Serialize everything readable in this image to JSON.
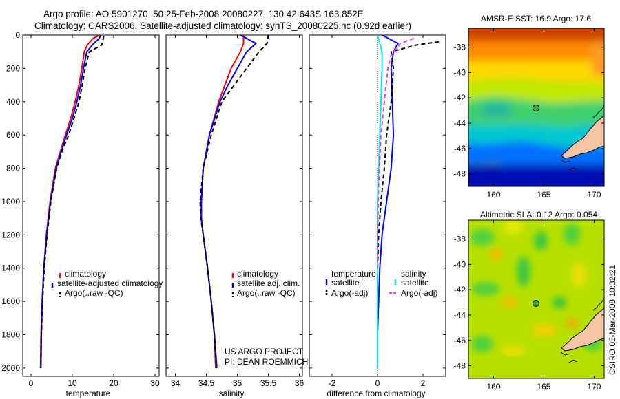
{
  "header": {
    "line1": "Argo profile: AO 5901270_50 25-Feb-2008 20080227_130 42.643S 163.852E",
    "line2": "Climatology: CARS2006. Satellite-adjusted climatology: synTS_20080225.nc (0.92d earlier)"
  },
  "footer": {
    "project": "US ARGO PROJECT",
    "pi": "PI: DEAN ROEMMICH",
    "stamp": "CSIRO 05-Mar-2008 10:32:21"
  },
  "colors": {
    "climatology": "#ff0000",
    "satellite": "#0000ff",
    "argo": "#000000",
    "salinity_sat": "#00e5ff",
    "salinity_argo": "#e040e0",
    "land": "#f5c5a5"
  },
  "chart_data": [
    {
      "id": "temperature",
      "type": "line",
      "xlabel": "temperature",
      "ylabel": "",
      "xlim": [
        -2,
        31
      ],
      "ylim": [
        2050,
        0
      ],
      "xticks": [
        0,
        10,
        20,
        30
      ],
      "yticks": [
        0,
        200,
        400,
        600,
        800,
        1000,
        1200,
        1400,
        1600,
        1800,
        2000
      ],
      "legend": [
        "climatology",
        "satellite-adjusted climatology",
        "Argo(..raw -QC)"
      ],
      "series": [
        {
          "name": "climatology",
          "color": "red",
          "dash": "",
          "x": [
            16.6,
            15.0,
            13.6,
            12.9,
            12.3,
            11.6,
            10.7,
            9.6,
            8.3,
            7.1,
            5.9,
            4.6,
            3.7,
            3.1,
            2.7,
            2.4,
            2.3
          ],
          "depth": [
            0,
            20,
            60,
            100,
            200,
            300,
            400,
            500,
            600,
            700,
            800,
            1000,
            1200,
            1400,
            1600,
            1800,
            2000
          ]
        },
        {
          "name": "satellite-adjusted climatology",
          "color": "blue",
          "dash": "",
          "x": [
            16.9,
            16.5,
            14.8,
            13.5,
            12.7,
            12.0,
            11.1,
            10.0,
            8.6,
            7.3,
            6.1,
            4.7,
            3.8,
            3.1,
            2.7,
            2.5,
            2.4
          ],
          "depth": [
            0,
            20,
            60,
            100,
            200,
            300,
            400,
            500,
            600,
            700,
            800,
            1000,
            1200,
            1400,
            1600,
            1800,
            2000
          ]
        },
        {
          "name": "Argo(..raw -QC)",
          "color": "black",
          "dash": "6,4",
          "x": [
            17.6,
            17.5,
            17.1,
            14.1,
            13.1,
            12.4,
            11.6,
            10.4,
            9.1,
            7.5,
            6.2,
            4.8,
            3.9,
            3.2,
            2.8,
            2.5,
            2.4
          ],
          "depth": [
            5,
            20,
            60,
            100,
            200,
            300,
            400,
            500,
            600,
            700,
            800,
            1000,
            1200,
            1400,
            1600,
            1800,
            2000
          ]
        }
      ]
    },
    {
      "id": "salinity",
      "type": "line",
      "xlabel": "salinity",
      "ylabel": "",
      "xlim": [
        33.85,
        36.05
      ],
      "ylim": [
        2050,
        0
      ],
      "xticks": [
        34,
        34.5,
        35,
        35.5,
        36
      ],
      "xticklabels": [
        "34",
        "34.5",
        "35",
        "35.5",
        "36"
      ],
      "yticks": [
        0,
        200,
        400,
        600,
        800,
        1000,
        1200,
        1400,
        1600,
        1800,
        2000
      ],
      "legend": [
        "climatology",
        "satellite adj. clim.",
        "Argo(..raw -QC)"
      ],
      "series": [
        {
          "name": "climatology",
          "color": "red",
          "dash": "",
          "x": [
            35.1,
            35.1,
            35.05,
            34.9,
            34.8,
            34.7,
            34.55,
            34.45,
            34.42,
            34.42,
            34.45,
            34.52,
            34.58,
            34.63,
            34.65
          ],
          "depth": [
            0,
            50,
            100,
            200,
            300,
            400,
            600,
            800,
            1000,
            1100,
            1200,
            1400,
            1600,
            1800,
            2000
          ]
        },
        {
          "name": "satellite adj. clim.",
          "color": "blue",
          "dash": "",
          "x": [
            35.05,
            35.3,
            35.15,
            35.0,
            34.85,
            34.72,
            34.55,
            34.45,
            34.42,
            34.42,
            34.45,
            34.52,
            34.58,
            34.63,
            34.67
          ],
          "depth": [
            0,
            50,
            100,
            200,
            300,
            400,
            600,
            800,
            1000,
            1100,
            1200,
            1400,
            1600,
            1800,
            2000
          ]
        },
        {
          "name": "Argo(..raw -QC)",
          "color": "black",
          "dash": "6,4",
          "x": [
            35.5,
            35.48,
            35.35,
            35.15,
            34.95,
            34.75,
            34.58,
            34.45,
            34.4,
            34.41,
            34.45,
            34.52,
            34.58,
            34.63,
            34.66
          ],
          "depth": [
            0,
            50,
            100,
            200,
            300,
            400,
            600,
            800,
            1000,
            1100,
            1200,
            1400,
            1600,
            1800,
            2000
          ]
        }
      ]
    },
    {
      "id": "difference",
      "type": "line",
      "xlabel": "difference from climatology",
      "ylabel": "",
      "xlim": [
        -3,
        3
      ],
      "ylim": [
        2050,
        0
      ],
      "xticks": [
        -2,
        0,
        2
      ],
      "yticks": [
        0,
        200,
        400,
        600,
        800,
        1000,
        1200,
        1400,
        1600,
        1800,
        2000
      ],
      "legend_left_title": "temperature",
      "legend_right_title": "salinity",
      "legend": [
        "satellite",
        "Argo(-adj)",
        "satellite",
        "Argo(-adj)"
      ],
      "series": [
        {
          "name": "temperature satellite",
          "color": "blue",
          "dash": "",
          "x": [
            0.2,
            0.9,
            0.7,
            0.6,
            0.65,
            0.7,
            0.6,
            0.4,
            0.2,
            0.1,
            0.05,
            0.0,
            0.0
          ],
          "depth": [
            0,
            50,
            100,
            200,
            400,
            600,
            800,
            1000,
            1200,
            1400,
            1600,
            1800,
            2000
          ]
        },
        {
          "name": "temperature Argo(-adj)",
          "color": "black",
          "dash": "6,4",
          "x": [
            2.7,
            1.7,
            0.6,
            0.7,
            0.6,
            0.4,
            0.3,
            0.15,
            0.05,
            0.0,
            0.0,
            0.0,
            0.0
          ],
          "depth": [
            40,
            60,
            100,
            200,
            400,
            600,
            800,
            1000,
            1200,
            1400,
            1600,
            1800,
            2000
          ]
        },
        {
          "name": "salinity satellite",
          "color": "cyan",
          "dash": "",
          "x": [
            0.0,
            0.2,
            0.2,
            0.15,
            0.1,
            0.05,
            0.0,
            0.0,
            0.0,
            0.0,
            0.0
          ],
          "depth": [
            0,
            100,
            200,
            400,
            600,
            800,
            1000,
            1200,
            1400,
            1800,
            2000
          ]
        },
        {
          "name": "salinity Argo(-adj)",
          "color": "magenta",
          "dash": "6,4",
          "x": [
            1.6,
            1.0,
            0.6,
            0.45,
            0.3,
            0.15,
            0.05,
            0.0,
            0.0
          ],
          "depth": [
            20,
            50,
            120,
            200,
            400,
            600,
            900,
            1200,
            1400
          ]
        }
      ]
    },
    {
      "id": "sst-map",
      "type": "heatmap",
      "title": "AMSR-E SST: 16.9 Argo: 17.6",
      "xlim": [
        157.5,
        171
      ],
      "ylim": [
        -49,
        -36.5
      ],
      "xticks": [
        160,
        165,
        170
      ],
      "yticks": [
        -38,
        -40,
        -42,
        -44,
        -46,
        -48
      ],
      "argo_position": {
        "lon": 163.852,
        "lat": -42.643
      }
    },
    {
      "id": "sla-map",
      "type": "heatmap",
      "title": "Altimetric SLA: 0.12 Argo: 0.054",
      "xlim": [
        157.5,
        171
      ],
      "ylim": [
        -49,
        -36.5
      ],
      "xticks": [
        160,
        165,
        170
      ],
      "yticks": [
        -38,
        -40,
        -42,
        -44,
        -46,
        -48
      ],
      "argo_position": {
        "lon": 163.852,
        "lat": -42.643
      }
    }
  ]
}
